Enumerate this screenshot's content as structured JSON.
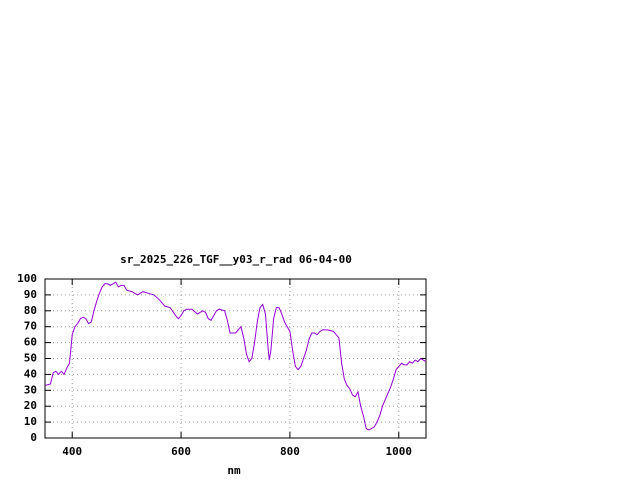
{
  "chart_data": {
    "type": "line",
    "title": "sr_2025_226_TGF__y03_r_rad 06-04-00",
    "x_label": "nm",
    "x": [
      350,
      360,
      365,
      370,
      375,
      380,
      385,
      390,
      395,
      400,
      405,
      410,
      415,
      420,
      425,
      430,
      435,
      440,
      445,
      450,
      455,
      460,
      465,
      470,
      475,
      480,
      485,
      490,
      495,
      500,
      510,
      520,
      530,
      540,
      550,
      560,
      570,
      580,
      590,
      595,
      600,
      605,
      610,
      620,
      630,
      640,
      645,
      650,
      655,
      660,
      665,
      670,
      680,
      685,
      690,
      700,
      705,
      710,
      715,
      720,
      725,
      730,
      735,
      740,
      745,
      750,
      755,
      760,
      762,
      765,
      770,
      775,
      780,
      785,
      790,
      795,
      800,
      805,
      810,
      815,
      820,
      825,
      830,
      835,
      840,
      845,
      850,
      855,
      860,
      870,
      880,
      885,
      890,
      895,
      900,
      905,
      910,
      915,
      920,
      925,
      930,
      935,
      940,
      945,
      950,
      955,
      960,
      965,
      970,
      975,
      980,
      985,
      990,
      995,
      1000,
      1005,
      1010,
      1015,
      1020,
      1025,
      1030,
      1035,
      1040,
      1045,
      1050
    ],
    "values": [
      33,
      34,
      41,
      42,
      40,
      42,
      40,
      44,
      47,
      65,
      70,
      72,
      75,
      76,
      75,
      72,
      73,
      80,
      86,
      91,
      95,
      97,
      97,
      96,
      97,
      98,
      95,
      96,
      96,
      93,
      92,
      90,
      92,
      91,
      90,
      87,
      83,
      82,
      77,
      75,
      77,
      80,
      81,
      81,
      78,
      80,
      79,
      75,
      74,
      77,
      80,
      81,
      80,
      74,
      66,
      66,
      68,
      70,
      63,
      53,
      48,
      50,
      60,
      73,
      82,
      84,
      78,
      56,
      49,
      55,
      75,
      82,
      82,
      78,
      73,
      70,
      67,
      55,
      45,
      43,
      45,
      50,
      55,
      62,
      66,
      66,
      65,
      67,
      68,
      68,
      67,
      65,
      63,
      47,
      37,
      33,
      31,
      27,
      26,
      29,
      20,
      14,
      6,
      5,
      6,
      7,
      10,
      14,
      20,
      24,
      28,
      32,
      37,
      43,
      45,
      47,
      46,
      46,
      48,
      47,
      49,
      48,
      50,
      49,
      48
    ],
    "color": "#9400d3",
    "xlim": [
      350,
      1050
    ],
    "ylim": [
      0,
      100
    ],
    "xticks": [
      400,
      600,
      800,
      1000
    ],
    "yticks": [
      0,
      10,
      20,
      30,
      40,
      50,
      60,
      70,
      80,
      90,
      100
    ],
    "grid": true
  }
}
